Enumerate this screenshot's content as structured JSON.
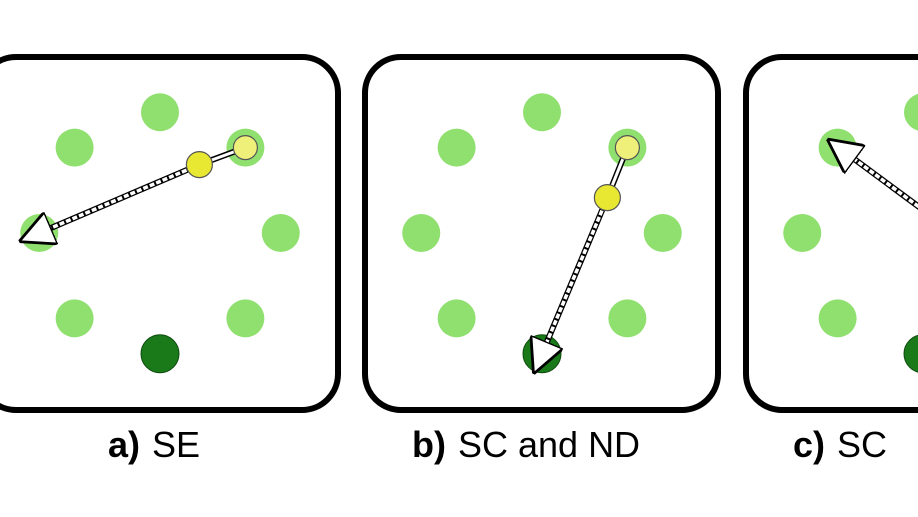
{
  "colors": {
    "background": "#ffffff",
    "frame": "#000000",
    "target_light": "#90e070",
    "target_dark": "#1a7a1a",
    "cursor_yellow": "#e8e832",
    "cursor_pale": "#eef07a",
    "arrow": "#ffffff"
  },
  "panels": [
    {
      "letter": "a)",
      "label": "SE",
      "highlight": 1,
      "dark": 4,
      "arrowTo": 6
    },
    {
      "letter": "b)",
      "label": "SC and ND",
      "highlight": 1,
      "dark": 4,
      "arrowTo": 4
    },
    {
      "letter": "c)",
      "label": "SC",
      "highlight": 7,
      "dark": 4,
      "arrowTo": 7
    }
  ]
}
